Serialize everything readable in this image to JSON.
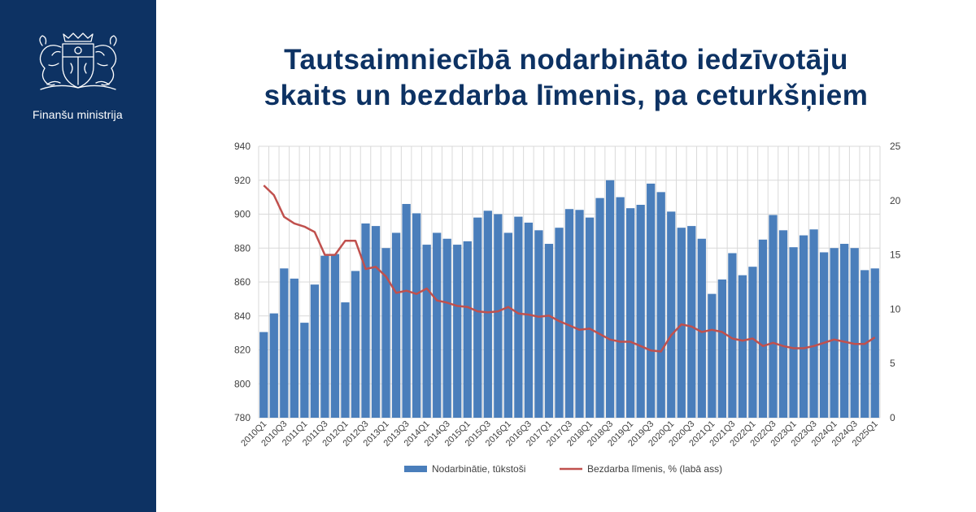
{
  "sidebar": {
    "ministry_name": "Finanšu ministrija",
    "emblem": "latvia-coat-of-arms"
  },
  "title_lines": [
    "Tautsaimniecībā nodarbināto iedzīvotāju",
    "skaits un bezdarba līmenis, pa ceturkšņiem"
  ],
  "colors": {
    "sidebar": "#0d3263",
    "title": "#0d3263",
    "bars": "#4a7ebb",
    "line": "#c0504d",
    "axis_text": "#404040",
    "grid": "#d9d9d9"
  },
  "chart_data": {
    "type": "bar",
    "x": [
      "2010Q1",
      "2010Q2",
      "2010Q3",
      "2010Q4",
      "2011Q1",
      "2011Q2",
      "2011Q3",
      "2011Q4",
      "2012Q1",
      "2012Q2",
      "2012Q3",
      "2012Q4",
      "2013Q1",
      "2013Q2",
      "2013Q3",
      "2013Q4",
      "2014Q1",
      "2014Q2",
      "2014Q3",
      "2014Q4",
      "2015Q1",
      "2015Q2",
      "2015Q3",
      "2015Q4",
      "2016Q1",
      "2016Q2",
      "2016Q3",
      "2016Q4",
      "2017Q1",
      "2017Q2",
      "2017Q3",
      "2017Q4",
      "2018Q1",
      "2018Q2",
      "2018Q3",
      "2018Q4",
      "2019Q1",
      "2019Q2",
      "2019Q3",
      "2019Q4",
      "2020Q1",
      "2020Q2",
      "2020Q3",
      "2020Q4",
      "2021Q1",
      "2021Q2",
      "2021Q3",
      "2021Q4",
      "2022Q1",
      "2022Q2",
      "2022Q3",
      "2022Q4",
      "2023Q1",
      "2023Q2",
      "2023Q3",
      "2023Q4",
      "2024Q1",
      "2024Q2",
      "2024Q3",
      "2024Q4",
      "2025Q1"
    ],
    "x_tick_labels": [
      "2010Q1",
      "2010Q3",
      "2011Q1",
      "2011Q3",
      "2012Q1",
      "2012Q3",
      "2013Q1",
      "2013Q3",
      "2014Q1",
      "2014Q3",
      "2015Q1",
      "2015Q3",
      "2016Q1",
      "2016Q3",
      "2017Q1",
      "2017Q3",
      "2018Q1",
      "2018Q3",
      "2019Q1",
      "2019Q3",
      "2020Q1",
      "2020Q3",
      "2021Q1",
      "2021Q3",
      "2022Q1",
      "2022Q3",
      "2023Q1",
      "2023Q3",
      "2024Q1",
      "2024Q3",
      "2025Q1"
    ],
    "series": [
      {
        "name": "Nodarbinātie, tūkstoši",
        "type": "bar",
        "axis": "left",
        "values": [
          830.5,
          841.5,
          868,
          862,
          836,
          858.5,
          875.5,
          876.5,
          848,
          866.5,
          894.5,
          893,
          880,
          889,
          906,
          900.5,
          882,
          889,
          885.5,
          882,
          884,
          898,
          902,
          900,
          889,
          898.5,
          895,
          890.5,
          882.5,
          892,
          903,
          902.5,
          898,
          909.5,
          920,
          910,
          903.5,
          905.5,
          918,
          913,
          901.5,
          892,
          893,
          885.5,
          853,
          861.5,
          877,
          864,
          869,
          885,
          899.5,
          890.5,
          880.5,
          887.5,
          891,
          877.5,
          880,
          882.5,
          880,
          867,
          868
        ]
      },
      {
        "name": "Bezdarba līmenis, % (labā ass)",
        "type": "line",
        "axis": "right",
        "values": [
          21.4,
          20.5,
          18.5,
          17.9,
          17.6,
          17.1,
          15.0,
          15.0,
          16.3,
          16.3,
          13.7,
          13.9,
          13.0,
          11.5,
          11.7,
          11.4,
          11.9,
          10.8,
          10.6,
          10.3,
          10.2,
          9.8,
          9.7,
          9.8,
          10.2,
          9.6,
          9.5,
          9.3,
          9.4,
          8.9,
          8.5,
          8.1,
          8.2,
          7.7,
          7.2,
          7.0,
          7.0,
          6.6,
          6.2,
          6.1,
          7.6,
          8.6,
          8.4,
          7.9,
          8.1,
          7.9,
          7.3,
          7.1,
          7.3,
          6.6,
          6.9,
          6.6,
          6.4,
          6.4,
          6.6,
          6.9,
          7.2,
          7.0,
          6.8,
          6.8,
          7.4
        ]
      }
    ],
    "y_left": {
      "min": 780,
      "max": 940,
      "step": 20,
      "ticks": [
        "780",
        "800",
        "820",
        "840",
        "860",
        "880",
        "900",
        "920",
        "940"
      ]
    },
    "y_right": {
      "min": 0,
      "max": 25,
      "step": 5,
      "ticks": [
        "0",
        "5",
        "10",
        "15",
        "20",
        "25"
      ]
    },
    "legend": [
      "Nodarbinātie, tūkstoši",
      "Bezdarba līmenis, % (labā ass)"
    ],
    "legend_position": "bottom",
    "grid": true
  }
}
